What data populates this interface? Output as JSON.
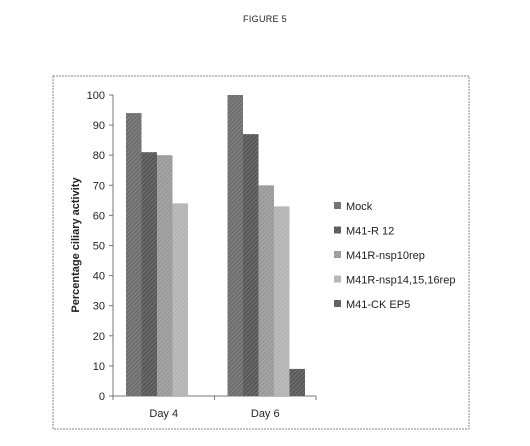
{
  "header": {
    "top_mark": "",
    "figure_label": "FIGURE 5"
  },
  "chart_data": {
    "type": "bar",
    "title": "",
    "xlabel": "",
    "ylabel": "Percentage ciliary activity",
    "ylim": [
      0,
      100
    ],
    "yticks": [
      0,
      10,
      20,
      30,
      40,
      50,
      60,
      70,
      80,
      90,
      100
    ],
    "categories": [
      "Day 4",
      "Day 6"
    ],
    "series": [
      {
        "name": "Mock",
        "values": [
          94,
          100
        ],
        "color": "#6e6e6e"
      },
      {
        "name": "M41-R 12",
        "values": [
          81,
          87
        ],
        "color": "#585858"
      },
      {
        "name": "M41R-nsp10rep",
        "values": [
          80,
          70
        ],
        "color": "#9a9a9a"
      },
      {
        "name": "M41R-nsp14,15,16rep",
        "values": [
          64,
          63
        ],
        "color": "#b4b4b4"
      },
      {
        "name": "M41-CK EP5",
        "values": [
          null,
          9
        ],
        "color": "#5a5a5a"
      }
    ],
    "grid": false,
    "legend": "right"
  }
}
